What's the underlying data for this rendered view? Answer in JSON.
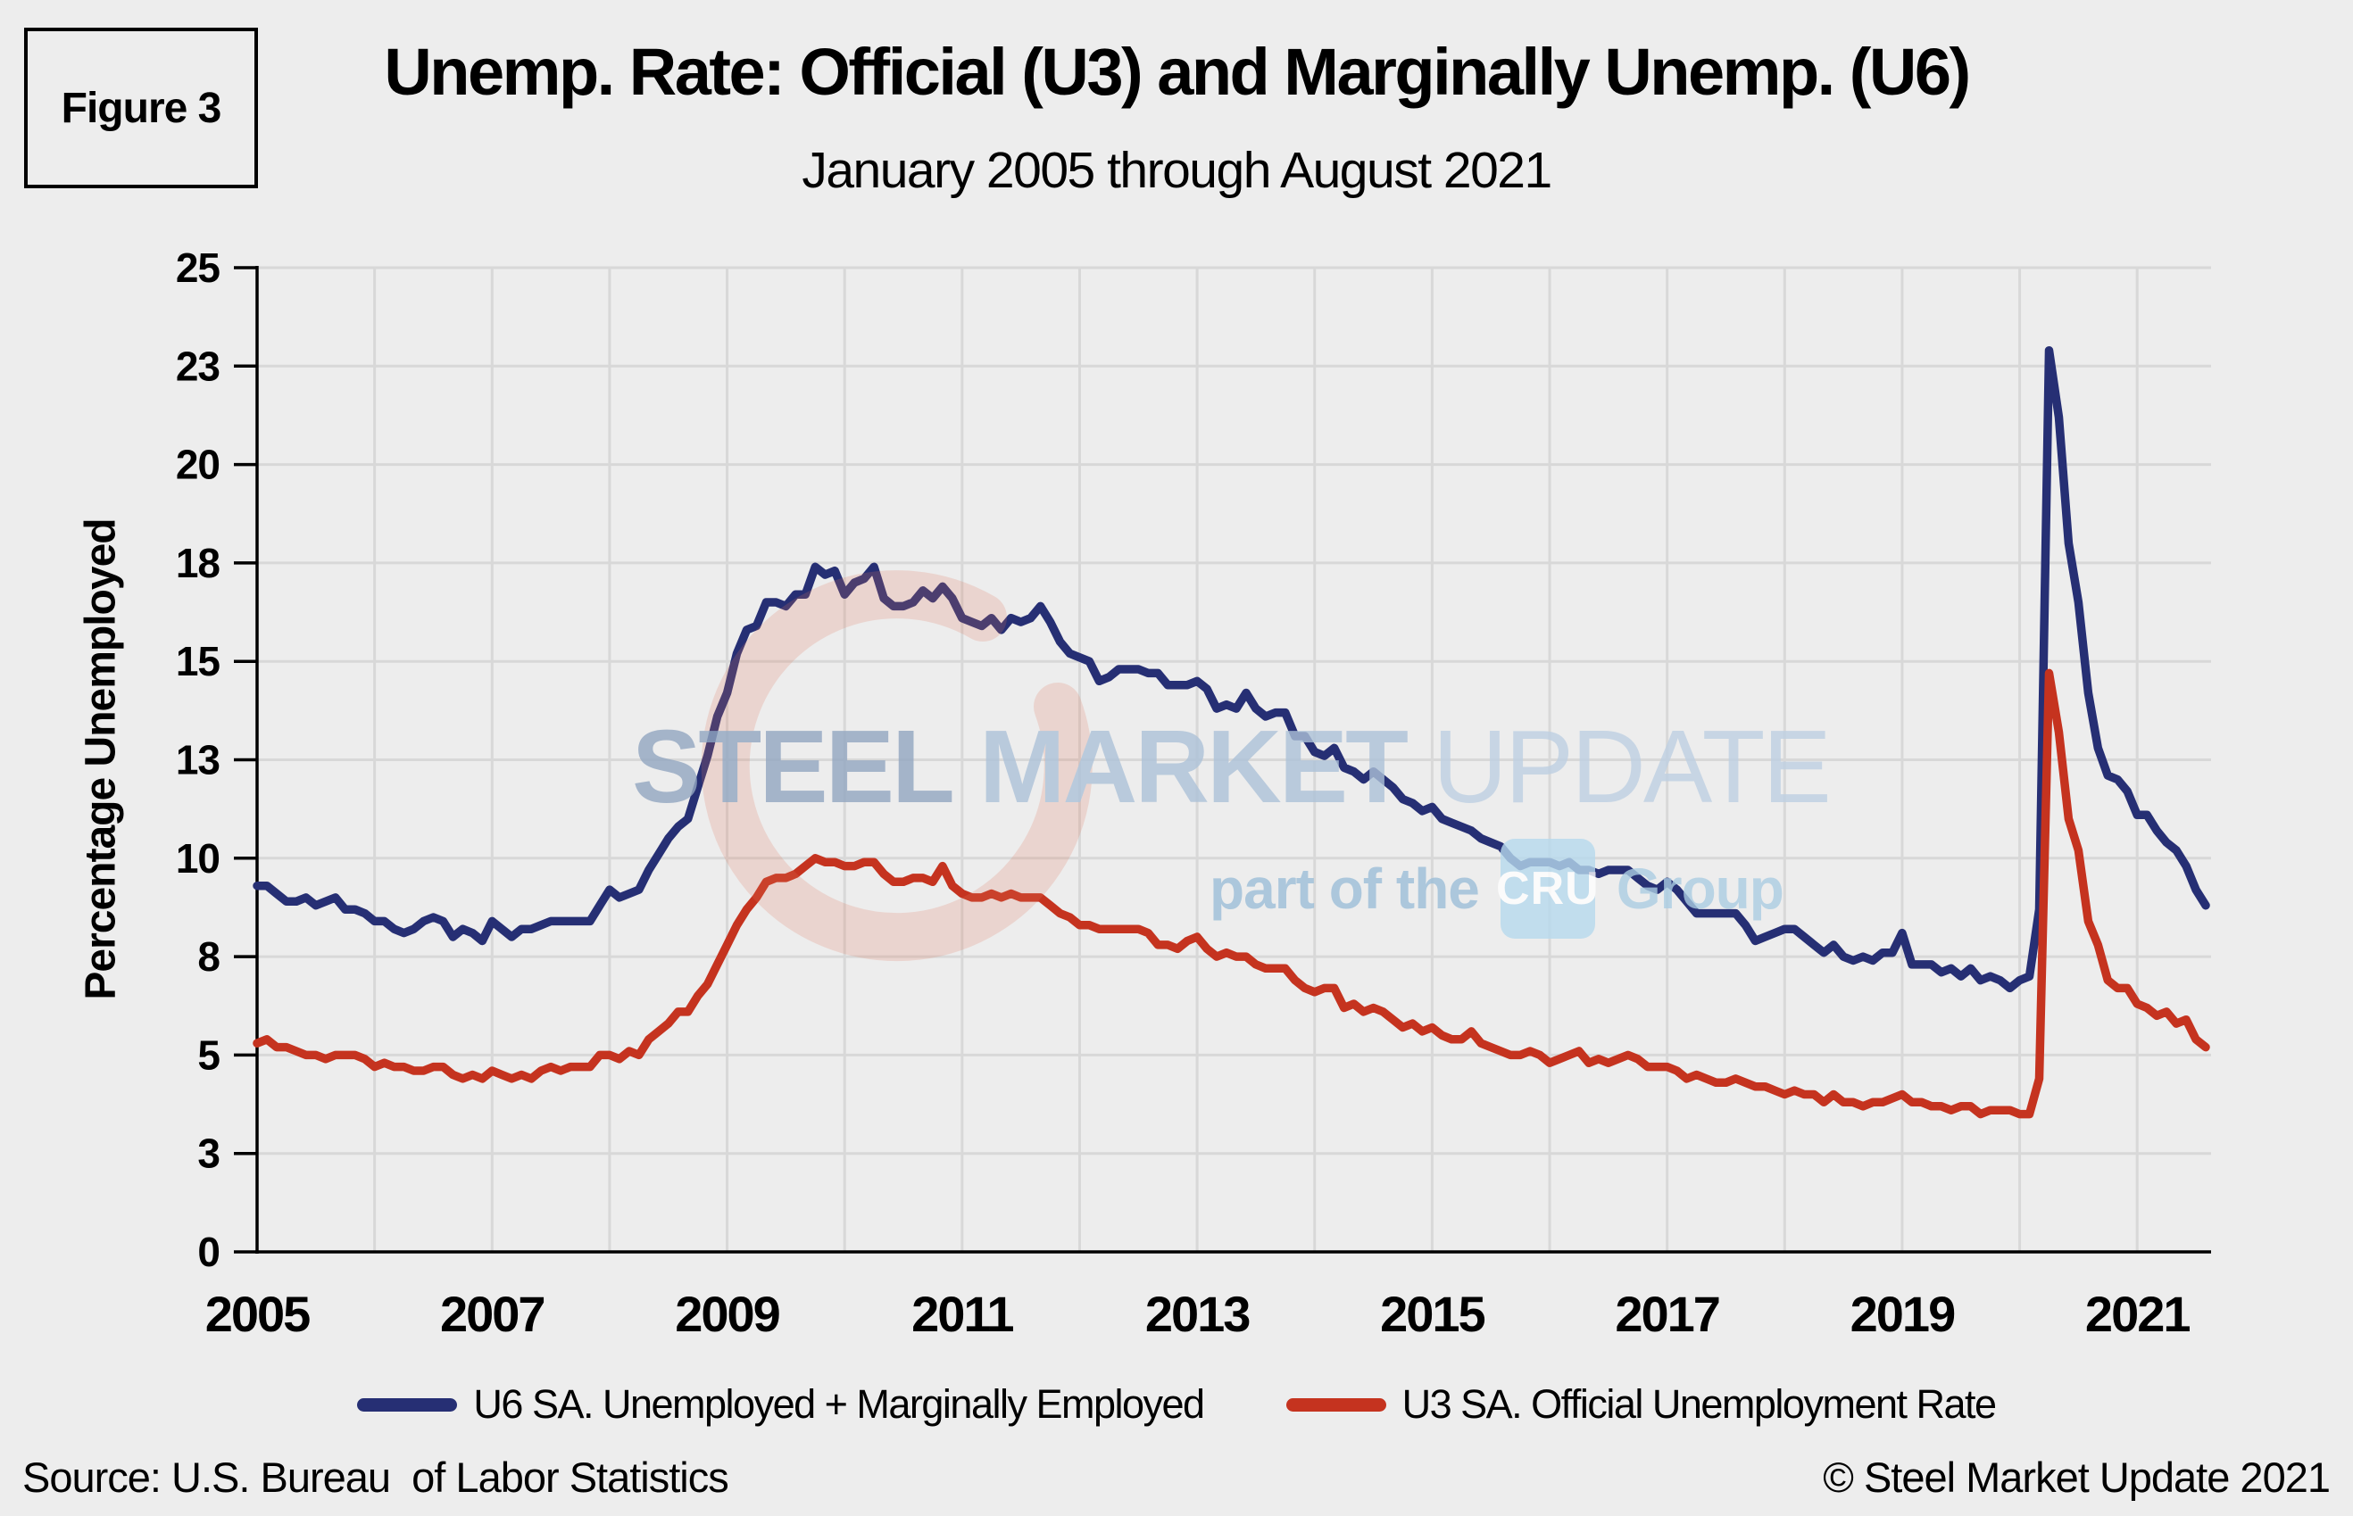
{
  "figure_label": "Figure 3",
  "title": "Unemp. Rate: Official (U3) and Marginally Unemp. (U6)",
  "subtitle": "January 2005 through August 2021",
  "source": "Source: U.S. Bureau  of Labor Statistics",
  "copyright": "© Steel Market Update 2021",
  "watermark": {
    "word1": "STEEL",
    "word2": "MARKET",
    "word3": "UPDATE",
    "tagline_prefix": "part of the",
    "badge": "CRU",
    "tagline_suffix": "Group",
    "arc_color": "#e0785c",
    "badge_color": "#b7daee"
  },
  "colors": {
    "background": "#ededed",
    "gridline": "#d8d8d8",
    "axis": "#000000",
    "u6": "#262f74",
    "u3": "#c5331f"
  },
  "legend": {
    "items": [
      {
        "label": "U6 SA. Unemployed + Marginally Employed",
        "color": "#262f74"
      },
      {
        "label": "U3 SA. Official Unemployment Rate",
        "color": "#c5331f"
      }
    ]
  },
  "chart_data": {
    "type": "line",
    "title": "Unemp. Rate: Official (U3) and Marginally Unemp. (U6)",
    "subtitle": "January 2005 through August 2021",
    "ylabel": "Percentage Unemployed",
    "xlabel": "",
    "ylim": [
      0,
      25
    ],
    "grid": true,
    "legend_position": "bottom",
    "x_start": "2005-01",
    "x_end": "2021-08",
    "x_interval": "monthly",
    "x_tick_labels": [
      "2005",
      "2007",
      "2009",
      "2011",
      "2013",
      "2015",
      "2017",
      "2019",
      "2021"
    ],
    "x_gridline_interval_months": 12,
    "y_ticks": [
      {
        "v": 0,
        "label": "0"
      },
      {
        "v": 2.5,
        "label": "3"
      },
      {
        "v": 5,
        "label": "5"
      },
      {
        "v": 7.5,
        "label": "8"
      },
      {
        "v": 10,
        "label": "10"
      },
      {
        "v": 12.5,
        "label": "13"
      },
      {
        "v": 15,
        "label": "15"
      },
      {
        "v": 17.5,
        "label": "18"
      },
      {
        "v": 20,
        "label": "20"
      },
      {
        "v": 22.5,
        "label": "23"
      },
      {
        "v": 25,
        "label": "25"
      }
    ],
    "series": [
      {
        "name": "U6 SA. Unemployed + Marginally Employed",
        "color": "#262f74",
        "values": [
          9.3,
          9.3,
          9.1,
          8.9,
          8.9,
          9.0,
          8.8,
          8.9,
          9.0,
          8.7,
          8.7,
          8.6,
          8.4,
          8.4,
          8.2,
          8.1,
          8.2,
          8.4,
          8.5,
          8.4,
          8.0,
          8.2,
          8.1,
          7.9,
          8.4,
          8.2,
          8.0,
          8.2,
          8.2,
          8.3,
          8.4,
          8.4,
          8.4,
          8.4,
          8.4,
          8.8,
          9.2,
          9.0,
          9.1,
          9.2,
          9.7,
          10.1,
          10.5,
          10.8,
          11.0,
          11.8,
          12.6,
          13.6,
          14.2,
          15.2,
          15.8,
          15.9,
          16.5,
          16.5,
          16.4,
          16.7,
          16.7,
          17.4,
          17.2,
          17.3,
          16.7,
          17.0,
          17.1,
          17.4,
          16.6,
          16.4,
          16.4,
          16.5,
          16.8,
          16.6,
          16.9,
          16.6,
          16.1,
          16.0,
          15.9,
          16.1,
          15.8,
          16.1,
          16.0,
          16.1,
          16.4,
          16.0,
          15.5,
          15.2,
          15.1,
          15.0,
          14.5,
          14.6,
          14.8,
          14.8,
          14.8,
          14.7,
          14.7,
          14.4,
          14.4,
          14.4,
          14.5,
          14.3,
          13.8,
          13.9,
          13.8,
          14.2,
          13.8,
          13.6,
          13.7,
          13.7,
          13.1,
          13.1,
          12.7,
          12.6,
          12.8,
          12.3,
          12.2,
          12.0,
          12.2,
          12.0,
          11.8,
          11.5,
          11.4,
          11.2,
          11.3,
          11.0,
          10.9,
          10.8,
          10.7,
          10.5,
          10.4,
          10.3,
          10.0,
          9.8,
          9.9,
          9.9,
          9.9,
          9.8,
          9.9,
          9.7,
          9.7,
          9.6,
          9.7,
          9.7,
          9.7,
          9.5,
          9.3,
          9.2,
          9.4,
          9.2,
          8.9,
          8.6,
          8.6,
          8.6,
          8.6,
          8.6,
          8.3,
          7.9,
          8.0,
          8.1,
          8.2,
          8.2,
          8.0,
          7.8,
          7.6,
          7.8,
          7.5,
          7.4,
          7.5,
          7.4,
          7.6,
          7.6,
          8.1,
          7.3,
          7.3,
          7.3,
          7.1,
          7.2,
          7.0,
          7.2,
          6.9,
          7.0,
          6.9,
          6.7,
          6.9,
          7.0,
          8.7,
          22.9,
          21.2,
          18.0,
          16.5,
          14.2,
          12.8,
          12.1,
          12.0,
          11.7,
          11.1,
          11.1,
          10.7,
          10.4,
          10.2,
          9.8,
          9.2,
          8.8
        ]
      },
      {
        "name": "U3 SA. Official Unemployment Rate",
        "color": "#c5331f",
        "values": [
          5.3,
          5.4,
          5.2,
          5.2,
          5.1,
          5.0,
          5.0,
          4.9,
          5.0,
          5.0,
          5.0,
          4.9,
          4.7,
          4.8,
          4.7,
          4.7,
          4.6,
          4.6,
          4.7,
          4.7,
          4.5,
          4.4,
          4.5,
          4.4,
          4.6,
          4.5,
          4.4,
          4.5,
          4.4,
          4.6,
          4.7,
          4.6,
          4.7,
          4.7,
          4.7,
          5.0,
          5.0,
          4.9,
          5.1,
          5.0,
          5.4,
          5.6,
          5.8,
          6.1,
          6.1,
          6.5,
          6.8,
          7.3,
          7.8,
          8.3,
          8.7,
          9.0,
          9.4,
          9.5,
          9.5,
          9.6,
          9.8,
          10.0,
          9.9,
          9.9,
          9.8,
          9.8,
          9.9,
          9.9,
          9.6,
          9.4,
          9.4,
          9.5,
          9.5,
          9.4,
          9.8,
          9.3,
          9.1,
          9.0,
          9.0,
          9.1,
          9.0,
          9.1,
          9.0,
          9.0,
          9.0,
          8.8,
          8.6,
          8.5,
          8.3,
          8.3,
          8.2,
          8.2,
          8.2,
          8.2,
          8.2,
          8.1,
          7.8,
          7.8,
          7.7,
          7.9,
          8.0,
          7.7,
          7.5,
          7.6,
          7.5,
          7.5,
          7.3,
          7.2,
          7.2,
          7.2,
          6.9,
          6.7,
          6.6,
          6.7,
          6.7,
          6.2,
          6.3,
          6.1,
          6.2,
          6.1,
          5.9,
          5.7,
          5.8,
          5.6,
          5.7,
          5.5,
          5.4,
          5.4,
          5.6,
          5.3,
          5.2,
          5.1,
          5.0,
          5.0,
          5.1,
          5.0,
          4.8,
          4.9,
          5.0,
          5.1,
          4.8,
          4.9,
          4.8,
          4.9,
          5.0,
          4.9,
          4.7,
          4.7,
          4.7,
          4.6,
          4.4,
          4.5,
          4.4,
          4.3,
          4.3,
          4.4,
          4.3,
          4.2,
          4.2,
          4.1,
          4.0,
          4.1,
          4.0,
          4.0,
          3.8,
          4.0,
          3.8,
          3.8,
          3.7,
          3.8,
          3.8,
          3.9,
          4.0,
          3.8,
          3.8,
          3.7,
          3.7,
          3.6,
          3.7,
          3.7,
          3.5,
          3.6,
          3.6,
          3.6,
          3.5,
          3.5,
          4.4,
          14.7,
          13.2,
          11.0,
          10.2,
          8.4,
          7.8,
          6.9,
          6.7,
          6.7,
          6.3,
          6.2,
          6.0,
          6.1,
          5.8,
          5.9,
          5.4,
          5.2
        ]
      }
    ]
  }
}
